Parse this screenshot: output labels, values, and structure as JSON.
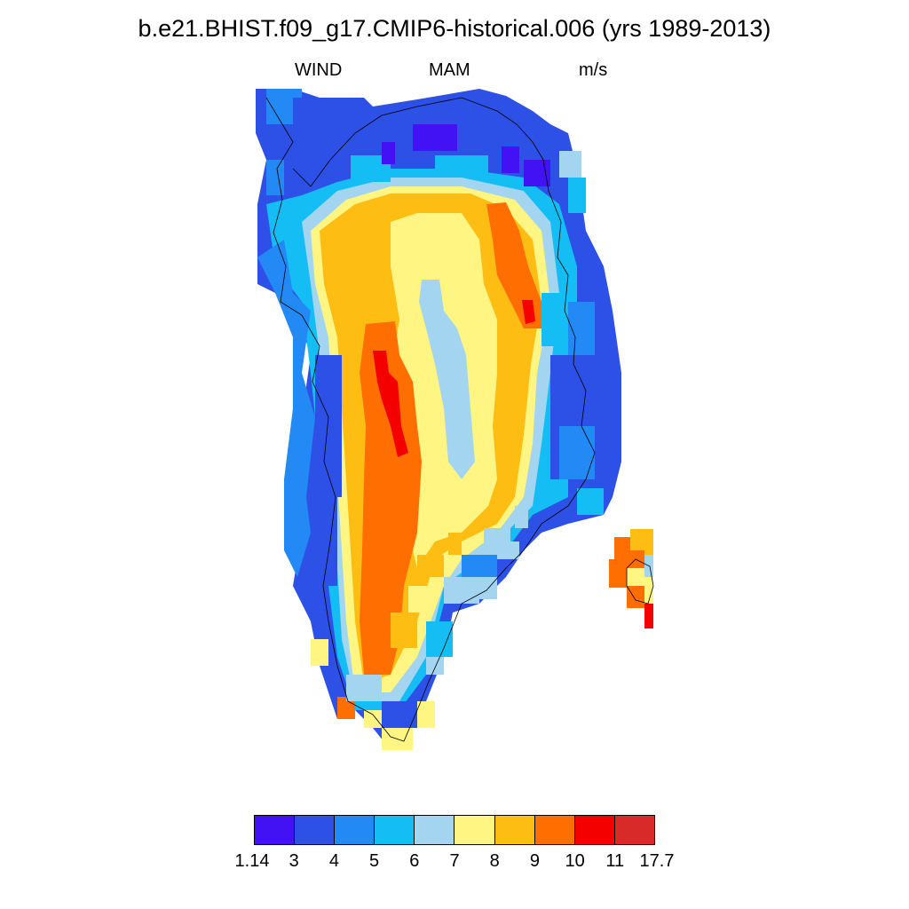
{
  "title": "b.e21.BHIST.f09_g17.CMIP6-historical.006 (yrs 1989-2013)",
  "subtitle": {
    "left": "WIND",
    "center": "MAM",
    "right": "m/s"
  },
  "colorbar": {
    "colors": [
      "#4212f5",
      "#2d50e6",
      "#2289f5",
      "#14bef5",
      "#a3d4f0",
      "#fff583",
      "#fdbd13",
      "#ff6e00",
      "#f50000",
      "#d92a2a"
    ],
    "labels": [
      "1.14",
      "3",
      "4",
      "5",
      "6",
      "7",
      "8",
      "9",
      "10",
      "11",
      "17.7"
    ]
  },
  "map_colors": {
    "deep-blue": "#4212f5",
    "blue": "#2d50e6",
    "mid-blue": "#2289f5",
    "cyan": "#14bef5",
    "light-blue": "#a3d4f0",
    "yellow": "#fff583",
    "orange-yellow": "#fdbd13",
    "orange": "#ff6e00",
    "red": "#f50000"
  }
}
